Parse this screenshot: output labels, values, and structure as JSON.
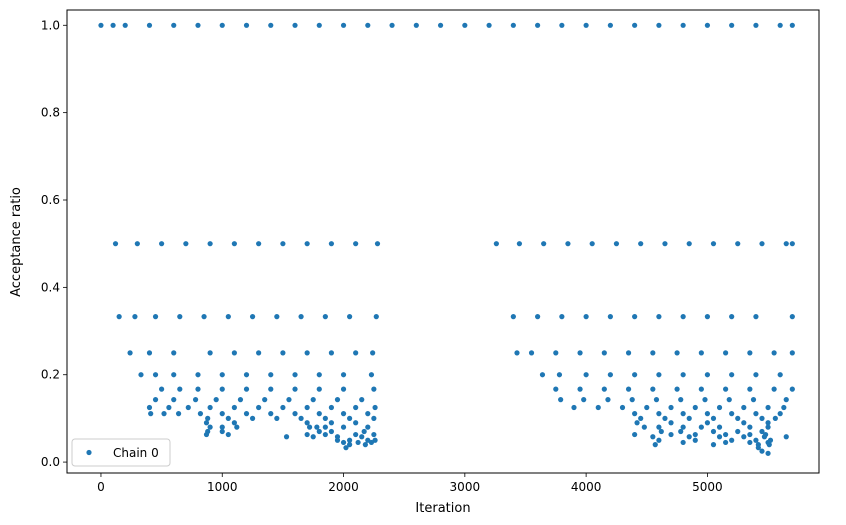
{
  "chart_data": {
    "type": "scatter",
    "title": "",
    "xlabel": "Iteration",
    "ylabel": "Acceptance ratio",
    "xlim": [
      -280,
      5920
    ],
    "ylim": [
      -0.025,
      1.035
    ],
    "x_ticks": [
      0,
      1000,
      2000,
      3000,
      4000,
      5000
    ],
    "y_ticks": [
      0.0,
      0.2,
      0.4,
      0.6,
      0.8,
      1.0
    ],
    "x_tick_labels": [
      "0",
      "1000",
      "2000",
      "3000",
      "4000",
      "5000"
    ],
    "y_tick_labels": [
      "0.0",
      "0.2",
      "0.4",
      "0.6",
      "0.8",
      "1.0"
    ],
    "grid": false,
    "legend_position": "lower-left",
    "series": [
      {
        "name": "Chain 0",
        "color": "#1f77b4",
        "marker": "circle",
        "points": [
          [
            0,
            1.0
          ],
          [
            100,
            1.0
          ],
          [
            200,
            1.0
          ],
          [
            400,
            1.0
          ],
          [
            600,
            1.0
          ],
          [
            800,
            1.0
          ],
          [
            1000,
            1.0
          ],
          [
            1200,
            1.0
          ],
          [
            1400,
            1.0
          ],
          [
            1600,
            1.0
          ],
          [
            1800,
            1.0
          ],
          [
            2000,
            1.0
          ],
          [
            2200,
            1.0
          ],
          [
            2400,
            1.0
          ],
          [
            2600,
            1.0
          ],
          [
            2800,
            1.0
          ],
          [
            3000,
            1.0
          ],
          [
            3200,
            1.0
          ],
          [
            3400,
            1.0
          ],
          [
            3600,
            1.0
          ],
          [
            3800,
            1.0
          ],
          [
            4000,
            1.0
          ],
          [
            4200,
            1.0
          ],
          [
            4400,
            1.0
          ],
          [
            4600,
            1.0
          ],
          [
            4800,
            1.0
          ],
          [
            5000,
            1.0
          ],
          [
            5200,
            1.0
          ],
          [
            5400,
            1.0
          ],
          [
            5600,
            1.0
          ],
          [
            5700,
            1.0
          ],
          [
            120,
            0.5
          ],
          [
            300,
            0.5
          ],
          [
            500,
            0.5
          ],
          [
            700,
            0.5
          ],
          [
            900,
            0.5
          ],
          [
            1100,
            0.5
          ],
          [
            1300,
            0.5
          ],
          [
            1500,
            0.5
          ],
          [
            1700,
            0.5
          ],
          [
            1900,
            0.5
          ],
          [
            2100,
            0.5
          ],
          [
            2280,
            0.5
          ],
          [
            3260,
            0.5
          ],
          [
            3450,
            0.5
          ],
          [
            3650,
            0.5
          ],
          [
            3850,
            0.5
          ],
          [
            4050,
            0.5
          ],
          [
            4250,
            0.5
          ],
          [
            4450,
            0.5
          ],
          [
            4650,
            0.5
          ],
          [
            4850,
            0.5
          ],
          [
            5050,
            0.5
          ],
          [
            5250,
            0.5
          ],
          [
            5450,
            0.5
          ],
          [
            5650,
            0.5
          ],
          [
            5700,
            0.5
          ],
          [
            150,
            0.333
          ],
          [
            280,
            0.333
          ],
          [
            450,
            0.333
          ],
          [
            650,
            0.333
          ],
          [
            850,
            0.333
          ],
          [
            1050,
            0.333
          ],
          [
            1250,
            0.333
          ],
          [
            1450,
            0.333
          ],
          [
            1650,
            0.333
          ],
          [
            1850,
            0.333
          ],
          [
            2050,
            0.333
          ],
          [
            2270,
            0.333
          ],
          [
            3400,
            0.333
          ],
          [
            3600,
            0.333
          ],
          [
            3800,
            0.333
          ],
          [
            4000,
            0.333
          ],
          [
            4200,
            0.333
          ],
          [
            4400,
            0.333
          ],
          [
            4600,
            0.333
          ],
          [
            4800,
            0.333
          ],
          [
            5000,
            0.333
          ],
          [
            5200,
            0.333
          ],
          [
            5400,
            0.333
          ],
          [
            5700,
            0.333
          ],
          [
            240,
            0.25
          ],
          [
            400,
            0.25
          ],
          [
            600,
            0.25
          ],
          [
            900,
            0.25
          ],
          [
            1100,
            0.25
          ],
          [
            1300,
            0.25
          ],
          [
            1500,
            0.25
          ],
          [
            1700,
            0.25
          ],
          [
            1900,
            0.25
          ],
          [
            2100,
            0.25
          ],
          [
            2240,
            0.25
          ],
          [
            3430,
            0.25
          ],
          [
            3550,
            0.25
          ],
          [
            3750,
            0.25
          ],
          [
            3950,
            0.25
          ],
          [
            4150,
            0.25
          ],
          [
            4350,
            0.25
          ],
          [
            4550,
            0.25
          ],
          [
            4750,
            0.25
          ],
          [
            4950,
            0.25
          ],
          [
            5150,
            0.25
          ],
          [
            5350,
            0.25
          ],
          [
            5550,
            0.25
          ],
          [
            5700,
            0.25
          ],
          [
            330,
            0.2
          ],
          [
            450,
            0.2
          ],
          [
            600,
            0.2
          ],
          [
            800,
            0.2
          ],
          [
            1000,
            0.2
          ],
          [
            1200,
            0.2
          ],
          [
            1400,
            0.2
          ],
          [
            1600,
            0.2
          ],
          [
            1800,
            0.2
          ],
          [
            2000,
            0.2
          ],
          [
            2230,
            0.2
          ],
          [
            3640,
            0.2
          ],
          [
            3780,
            0.2
          ],
          [
            4000,
            0.2
          ],
          [
            4200,
            0.2
          ],
          [
            4400,
            0.2
          ],
          [
            4600,
            0.2
          ],
          [
            4800,
            0.2
          ],
          [
            5000,
            0.2
          ],
          [
            5200,
            0.2
          ],
          [
            5400,
            0.2
          ],
          [
            5600,
            0.2
          ],
          [
            500,
            0.167
          ],
          [
            650,
            0.167
          ],
          [
            800,
            0.167
          ],
          [
            1000,
            0.167
          ],
          [
            1200,
            0.167
          ],
          [
            1400,
            0.167
          ],
          [
            1600,
            0.167
          ],
          [
            1800,
            0.167
          ],
          [
            2000,
            0.167
          ],
          [
            2250,
            0.167
          ],
          [
            3750,
            0.167
          ],
          [
            3950,
            0.167
          ],
          [
            4150,
            0.167
          ],
          [
            4350,
            0.167
          ],
          [
            4550,
            0.167
          ],
          [
            4750,
            0.167
          ],
          [
            4950,
            0.167
          ],
          [
            5150,
            0.167
          ],
          [
            5350,
            0.167
          ],
          [
            5550,
            0.167
          ],
          [
            5700,
            0.167
          ],
          [
            450,
            0.143
          ],
          [
            600,
            0.143
          ],
          [
            780,
            0.143
          ],
          [
            950,
            0.143
          ],
          [
            1150,
            0.143
          ],
          [
            1350,
            0.143
          ],
          [
            1550,
            0.143
          ],
          [
            1750,
            0.143
          ],
          [
            1950,
            0.143
          ],
          [
            2150,
            0.143
          ],
          [
            3790,
            0.143
          ],
          [
            3980,
            0.143
          ],
          [
            4180,
            0.143
          ],
          [
            4380,
            0.143
          ],
          [
            4580,
            0.143
          ],
          [
            4780,
            0.143
          ],
          [
            4980,
            0.143
          ],
          [
            5180,
            0.143
          ],
          [
            5380,
            0.143
          ],
          [
            5650,
            0.143
          ],
          [
            400,
            0.125
          ],
          [
            560,
            0.125
          ],
          [
            720,
            0.125
          ],
          [
            900,
            0.125
          ],
          [
            1100,
            0.125
          ],
          [
            1300,
            0.125
          ],
          [
            1500,
            0.125
          ],
          [
            1700,
            0.125
          ],
          [
            1900,
            0.125
          ],
          [
            2100,
            0.125
          ],
          [
            2260,
            0.125
          ],
          [
            3900,
            0.125
          ],
          [
            4100,
            0.125
          ],
          [
            4300,
            0.125
          ],
          [
            4500,
            0.125
          ],
          [
            4700,
            0.125
          ],
          [
            4900,
            0.125
          ],
          [
            5100,
            0.125
          ],
          [
            5300,
            0.125
          ],
          [
            5500,
            0.125
          ],
          [
            5630,
            0.125
          ],
          [
            410,
            0.111
          ],
          [
            520,
            0.111
          ],
          [
            640,
            0.111
          ],
          [
            820,
            0.111
          ],
          [
            1000,
            0.111
          ],
          [
            1200,
            0.111
          ],
          [
            1400,
            0.111
          ],
          [
            1600,
            0.111
          ],
          [
            1800,
            0.111
          ],
          [
            2000,
            0.111
          ],
          [
            2200,
            0.111
          ],
          [
            4400,
            0.111
          ],
          [
            4600,
            0.111
          ],
          [
            4800,
            0.111
          ],
          [
            5000,
            0.111
          ],
          [
            5200,
            0.111
          ],
          [
            5400,
            0.111
          ],
          [
            5600,
            0.111
          ],
          [
            880,
            0.1
          ],
          [
            1050,
            0.1
          ],
          [
            1250,
            0.1
          ],
          [
            1450,
            0.1
          ],
          [
            1650,
            0.1
          ],
          [
            1850,
            0.1
          ],
          [
            2050,
            0.1
          ],
          [
            2250,
            0.1
          ],
          [
            4450,
            0.1
          ],
          [
            4650,
            0.1
          ],
          [
            4850,
            0.1
          ],
          [
            5050,
            0.1
          ],
          [
            5250,
            0.1
          ],
          [
            5450,
            0.1
          ],
          [
            5560,
            0.1
          ],
          [
            870,
            0.09
          ],
          [
            1100,
            0.09
          ],
          [
            1700,
            0.09
          ],
          [
            1900,
            0.09
          ],
          [
            2100,
            0.09
          ],
          [
            4420,
            0.09
          ],
          [
            4700,
            0.09
          ],
          [
            5000,
            0.09
          ],
          [
            5300,
            0.09
          ],
          [
            5500,
            0.09
          ],
          [
            900,
            0.08
          ],
          [
            1000,
            0.08
          ],
          [
            1120,
            0.08
          ],
          [
            1720,
            0.08
          ],
          [
            1780,
            0.08
          ],
          [
            1850,
            0.08
          ],
          [
            2000,
            0.08
          ],
          [
            2200,
            0.08
          ],
          [
            4480,
            0.08
          ],
          [
            4600,
            0.08
          ],
          [
            4800,
            0.08
          ],
          [
            4950,
            0.08
          ],
          [
            5100,
            0.08
          ],
          [
            5350,
            0.08
          ],
          [
            5500,
            0.08
          ],
          [
            880,
            0.07
          ],
          [
            1000,
            0.07
          ],
          [
            1800,
            0.07
          ],
          [
            1900,
            0.07
          ],
          [
            2170,
            0.07
          ],
          [
            4620,
            0.07
          ],
          [
            4780,
            0.07
          ],
          [
            5050,
            0.07
          ],
          [
            5250,
            0.07
          ],
          [
            5450,
            0.07
          ],
          [
            870,
            0.063
          ],
          [
            1050,
            0.063
          ],
          [
            1700,
            0.063
          ],
          [
            1850,
            0.063
          ],
          [
            2100,
            0.063
          ],
          [
            2250,
            0.063
          ],
          [
            4400,
            0.063
          ],
          [
            4700,
            0.063
          ],
          [
            4900,
            0.063
          ],
          [
            5150,
            0.063
          ],
          [
            5350,
            0.063
          ],
          [
            5480,
            0.063
          ],
          [
            1530,
            0.058
          ],
          [
            1750,
            0.058
          ],
          [
            1950,
            0.058
          ],
          [
            2150,
            0.058
          ],
          [
            4550,
            0.058
          ],
          [
            4850,
            0.058
          ],
          [
            5100,
            0.058
          ],
          [
            5300,
            0.058
          ],
          [
            5470,
            0.058
          ],
          [
            5650,
            0.058
          ],
          [
            1950,
            0.05
          ],
          [
            2050,
            0.05
          ],
          [
            2200,
            0.05
          ],
          [
            2260,
            0.05
          ],
          [
            4600,
            0.05
          ],
          [
            4900,
            0.05
          ],
          [
            5200,
            0.05
          ],
          [
            5400,
            0.05
          ],
          [
            5520,
            0.05
          ],
          [
            2000,
            0.045
          ],
          [
            2120,
            0.045
          ],
          [
            2230,
            0.045
          ],
          [
            4800,
            0.045
          ],
          [
            5150,
            0.045
          ],
          [
            5350,
            0.045
          ],
          [
            5500,
            0.045
          ],
          [
            2050,
            0.04
          ],
          [
            2180,
            0.04
          ],
          [
            4570,
            0.04
          ],
          [
            5050,
            0.04
          ],
          [
            5420,
            0.04
          ],
          [
            5510,
            0.04
          ],
          [
            2020,
            0.033
          ],
          [
            5420,
            0.033
          ],
          [
            5450,
            0.025
          ],
          [
            5500,
            0.02
          ]
        ]
      }
    ]
  }
}
